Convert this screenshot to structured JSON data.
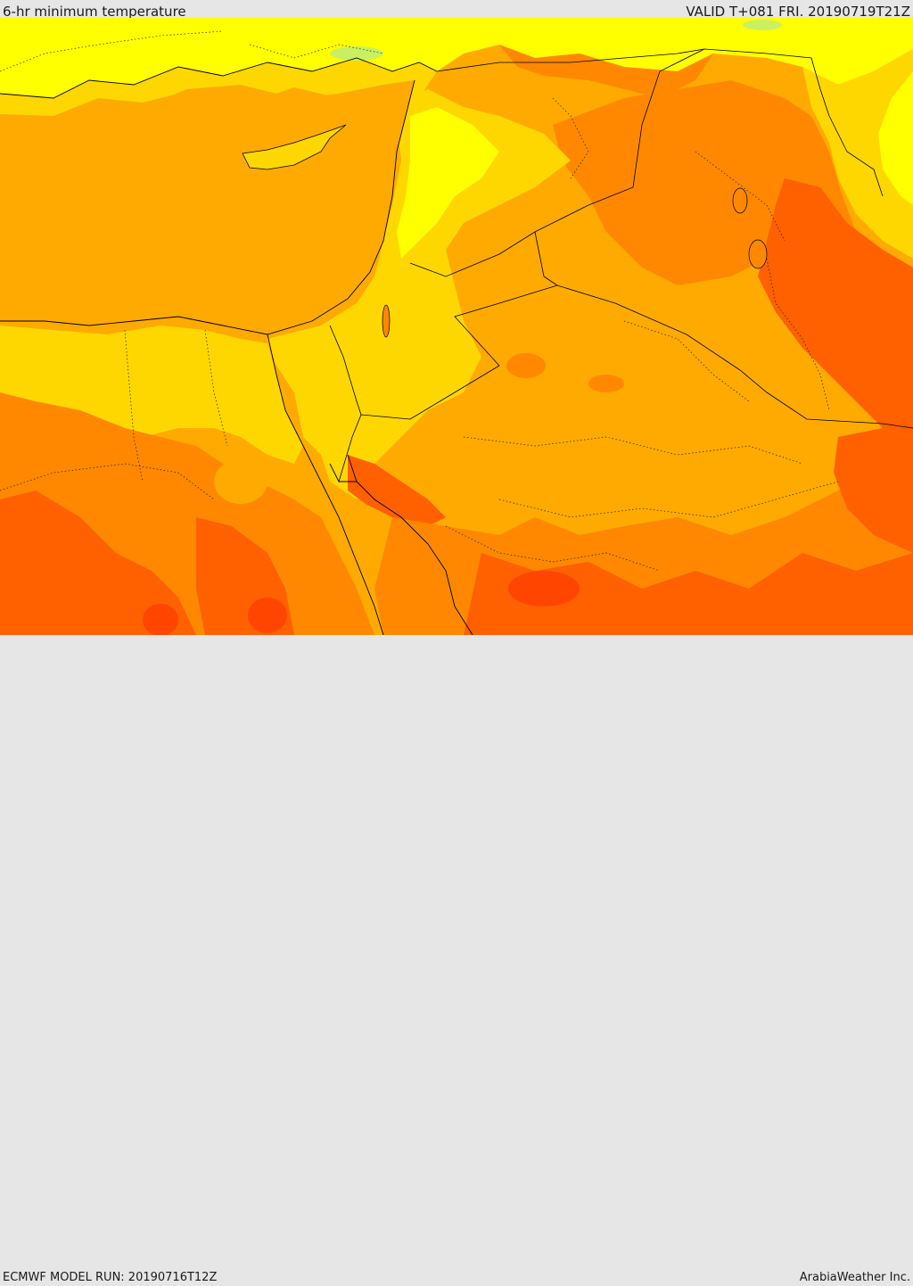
{
  "header": {
    "title": "6-hr minimum temperature",
    "valid": "VALID T+081 FRI. 20190719T21Z"
  },
  "footer": {
    "model_run": "ECMWF MODEL RUN: 20190716T12Z",
    "credit": "ArabiaWeather Inc."
  },
  "palette": {
    "yellow": "#ffff00",
    "gold": "#ffd700",
    "amber": "#ffaa00",
    "orange": "#ff8800",
    "dark_orange": "#ff6000",
    "red_orange": "#ff4500",
    "light_green": "#c8f060",
    "border": "#000000"
  }
}
